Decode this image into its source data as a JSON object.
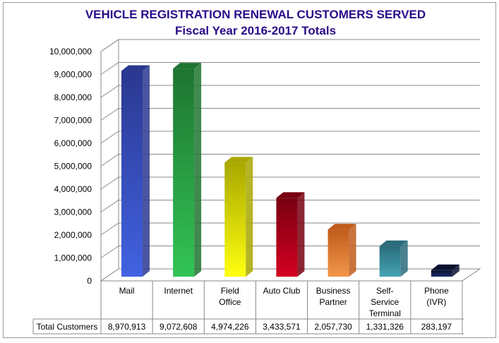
{
  "chart_data": {
    "type": "bar",
    "title": "VEHICLE REGISTRATION RENEWAL CUSTOMERS SERVED",
    "subtitle": "Fiscal Year 2016-2017 Totals",
    "categories": [
      [
        "Mail"
      ],
      [
        "Internet"
      ],
      [
        "Field",
        "Office"
      ],
      [
        "Auto Club"
      ],
      [
        "Business",
        "Partner"
      ],
      [
        "Self-",
        "Service",
        "Terminal"
      ],
      [
        "Phone",
        "(IVR)"
      ]
    ],
    "series": [
      {
        "name": "Total Customers",
        "values": [
          8970913,
          9072608,
          4974226,
          3433571,
          2057730,
          1331326,
          283197
        ],
        "value_labels": [
          "8,970,913",
          "9,072,608",
          "4,974,226",
          "3,433,571",
          "2,057,730",
          "1,331,326",
          "283,197"
        ]
      }
    ],
    "ylim": [
      0,
      10000000
    ],
    "yticks": [
      "0",
      "1,000,000",
      "2,000,000",
      "3,000,000",
      "4,000,000",
      "5,000,000",
      "6,000,000",
      "7,000,000",
      "8,000,000",
      "9,000,000",
      "10,000,000"
    ],
    "grid": true,
    "style": "3d",
    "data_table": true,
    "colors": [
      [
        "#2a3890",
        "#4262e2"
      ],
      [
        "#1e7430",
        "#32c455"
      ],
      [
        "#a8a800",
        "#ffff10"
      ],
      [
        "#780010",
        "#d40022"
      ],
      [
        "#c05c1c",
        "#f2964a"
      ],
      [
        "#2a6c7c",
        "#44a4b4"
      ],
      [
        "#0a1230",
        "#1c2c64"
      ]
    ]
  }
}
